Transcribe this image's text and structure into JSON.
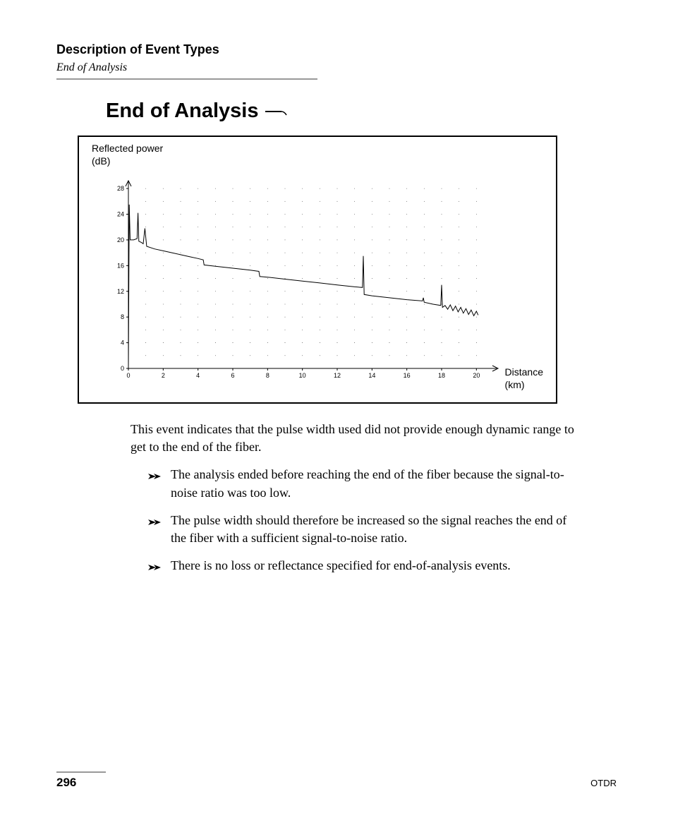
{
  "header": {
    "title": "Description of Event Types",
    "subtitle": "End of Analysis"
  },
  "section": {
    "title": "End of Analysis"
  },
  "chart": {
    "type": "line",
    "y_axis_label_line1": "Reflected power",
    "y_axis_label_line2": "(dB)",
    "x_axis_label_line1": "Distance",
    "x_axis_label_line2": "(km)",
    "y_ticks": [
      0,
      4,
      8,
      12,
      16,
      20,
      24,
      28
    ],
    "x_ticks": [
      0,
      2,
      4,
      6,
      8,
      10,
      12,
      14,
      16,
      18,
      20
    ],
    "xlim": [
      0,
      21
    ],
    "ylim": [
      0,
      29
    ],
    "tick_fontsize": 9,
    "label_fontsize": 14,
    "grid_dot_color": "#000000",
    "grid_dot_radius": 0.4,
    "axis_color": "#000000",
    "trace_color": "#000000",
    "trace_width": 1,
    "background_color": "#ffffff",
    "trace": [
      [
        0.0,
        0.0
      ],
      [
        0.05,
        25.5
      ],
      [
        0.1,
        20.0
      ],
      [
        0.3,
        20.0
      ],
      [
        0.5,
        20.2
      ],
      [
        0.55,
        24.2
      ],
      [
        0.6,
        19.8
      ],
      [
        0.75,
        19.6
      ],
      [
        0.85,
        19.4
      ],
      [
        0.95,
        21.8
      ],
      [
        1.05,
        19.0
      ],
      [
        1.5,
        18.6
      ],
      [
        2.0,
        18.3
      ],
      [
        2.5,
        18.0
      ],
      [
        3.0,
        17.7
      ],
      [
        3.5,
        17.4
      ],
      [
        4.0,
        17.1
      ],
      [
        4.3,
        16.9
      ],
      [
        4.35,
        16.1
      ],
      [
        5.0,
        15.9
      ],
      [
        6.0,
        15.6
      ],
      [
        7.0,
        15.3
      ],
      [
        7.5,
        15.1
      ],
      [
        7.55,
        14.3
      ],
      [
        8.0,
        14.2
      ],
      [
        9.0,
        13.9
      ],
      [
        10.0,
        13.6
      ],
      [
        11.0,
        13.3
      ],
      [
        12.0,
        13.0
      ],
      [
        13.0,
        12.7
      ],
      [
        13.45,
        12.6
      ],
      [
        13.5,
        17.5
      ],
      [
        13.55,
        11.5
      ],
      [
        14.0,
        11.3
      ],
      [
        15.0,
        11.0
      ],
      [
        16.0,
        10.7
      ],
      [
        16.9,
        10.5
      ],
      [
        16.95,
        11.0
      ],
      [
        17.0,
        10.3
      ],
      [
        17.5,
        10.0
      ],
      [
        17.95,
        9.8
      ],
      [
        18.0,
        13.0
      ],
      [
        18.05,
        9.5
      ],
      [
        18.2,
        9.8
      ],
      [
        18.35,
        9.2
      ],
      [
        18.5,
        9.9
      ],
      [
        18.65,
        9.0
      ],
      [
        18.8,
        9.7
      ],
      [
        18.95,
        8.8
      ],
      [
        19.1,
        9.5
      ],
      [
        19.25,
        8.6
      ],
      [
        19.4,
        9.3
      ],
      [
        19.55,
        8.4
      ],
      [
        19.7,
        9.1
      ],
      [
        19.85,
        8.2
      ],
      [
        20.0,
        8.9
      ],
      [
        20.1,
        8.3
      ]
    ]
  },
  "body": {
    "intro": "This event indicates that the pulse width used did not provide enough dynamic range to get to the end of the fiber.",
    "bullets": [
      "The analysis ended before reaching the end of the fiber because the signal-to-noise ratio was too low.",
      "The pulse width should therefore be increased so the signal reaches the end of the fiber with a sufficient signal-to-noise ratio.",
      "There is no loss or reflectance specified for end-of-analysis events."
    ]
  },
  "footer": {
    "page_number": "296",
    "doc_label": "OTDR"
  }
}
